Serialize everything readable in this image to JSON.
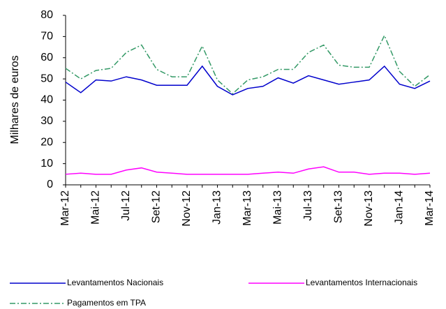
{
  "chart_data": {
    "type": "line",
    "y_label": "Milhares de euros",
    "categories": [
      "Mar-12",
      null,
      "Mai-12",
      null,
      "Jul-12",
      null,
      "Set-12",
      null,
      "Nov-12",
      null,
      "Jan-13",
      null,
      "Mar-13",
      null,
      "Mai-13",
      null,
      "Jul-13",
      null,
      "Set-13",
      null,
      "Nov-13",
      null,
      "Jan-14",
      null,
      "Mar-14"
    ],
    "series": [
      {
        "name": "Levantamentos Nacionais",
        "color": "#0000cc",
        "dash": "solid",
        "values": [
          48.5,
          43.5,
          49.5,
          49,
          51,
          49.5,
          47,
          47,
          47,
          56,
          46.5,
          42.5,
          45.5,
          46.5,
          50.5,
          48,
          51.5,
          49.5,
          47.5,
          48.5,
          49.5,
          56,
          47.5,
          45.5,
          49
        ]
      },
      {
        "name": "Levantamentos Internacionais",
        "color": "#ff00ff",
        "dash": "solid",
        "values": [
          5,
          5.5,
          5,
          5,
          7,
          8,
          6,
          5.5,
          5,
          5,
          5,
          5,
          5,
          5.5,
          6,
          5.5,
          7.5,
          8.5,
          6,
          6,
          5,
          5.5,
          5.5,
          5,
          5.5
        ]
      },
      {
        "name": "Pagamentos em TPA",
        "color": "#339966",
        "dash": "dashdot",
        "values": [
          55,
          50,
          54,
          55,
          62.5,
          66,
          54.5,
          51,
          51,
          65.5,
          49.5,
          43,
          49.5,
          51,
          54.5,
          54.5,
          62.5,
          66,
          56.5,
          55.5,
          55.5,
          70.5,
          53.5,
          46.5,
          52
        ]
      }
    ],
    "ylim": [
      0,
      80
    ],
    "yticks": [
      0,
      10,
      20,
      30,
      40,
      50,
      60,
      70,
      80
    ],
    "grid": false,
    "legend": "bottom"
  }
}
